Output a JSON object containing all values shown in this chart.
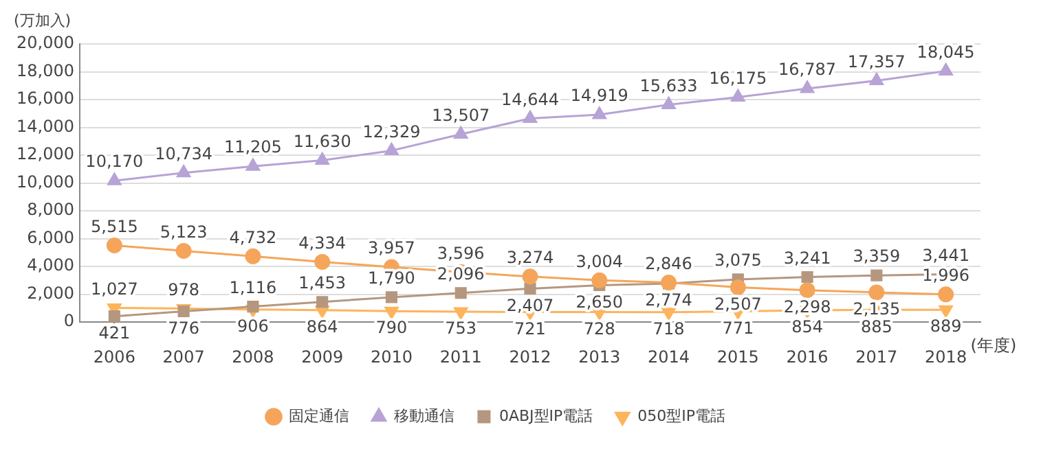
{
  "chart_data": {
    "type": "line",
    "ylabel": "(万加入)",
    "xlabel": "(年度)",
    "categories": [
      "2006",
      "2007",
      "2008",
      "2009",
      "2010",
      "2011",
      "2012",
      "2013",
      "2014",
      "2015",
      "2016",
      "2017",
      "2018"
    ],
    "series": [
      {
        "name": "固定通信",
        "color": "#f5a55a",
        "marker": "circle",
        "values": [
          5515,
          5123,
          4732,
          4334,
          3957,
          3596,
          3274,
          3004,
          2846,
          2507,
          2298,
          2135,
          1996
        ],
        "value_labels": [
          "5,515",
          "5,123",
          "4,732",
          "4,334",
          "3,957",
          "3,596",
          "3,274",
          "3,004",
          "2,846",
          "2,507",
          "2,298",
          "2,135",
          "1,996"
        ]
      },
      {
        "name": "移動通信",
        "color": "#b7a3d6",
        "marker": "triangle",
        "values": [
          10170,
          10734,
          11205,
          11630,
          12329,
          13507,
          14644,
          14919,
          15633,
          16175,
          16787,
          17357,
          18045
        ],
        "value_labels": [
          "10,170",
          "10,734",
          "11,205",
          "11,630",
          "12,329",
          "13,507",
          "14,644",
          "14,919",
          "15,633",
          "16,175",
          "16,787",
          "17,357",
          "18,045"
        ]
      },
      {
        "name": "0ABJ型IP電話",
        "color": "#b5977f",
        "marker": "square",
        "values": [
          421,
          776,
          1116,
          1453,
          1790,
          2096,
          2407,
          2650,
          2774,
          3075,
          3241,
          3359,
          3441
        ],
        "value_labels": [
          "421",
          "776",
          "1,116",
          "1,453",
          "1,790",
          "2,096",
          "2,407",
          "2,650",
          "2,774",
          "3,075",
          "3,241",
          "3,359",
          "3,441"
        ]
      },
      {
        "name": "050型IP電話",
        "color": "#fdb45c",
        "marker": "triangle-down",
        "values": [
          1027,
          978,
          906,
          864,
          790,
          753,
          721,
          728,
          718,
          771,
          854,
          885,
          889
        ],
        "value_labels": [
          "1,027",
          "978",
          "906",
          "864",
          "790",
          "753",
          "721",
          "728",
          "718",
          "771",
          "854",
          "885",
          "889"
        ]
      }
    ],
    "ylim": [
      0,
      20000
    ],
    "yticks": [
      0,
      {
        "value": 2000,
        "label": "2,000"
      },
      {
        "value": 4000,
        "label": "4,000"
      },
      {
        "value": 6000,
        "label": "6,000"
      },
      {
        "value": 8000,
        "label": "8,000"
      },
      {
        "value": 10000,
        "label": "10,000"
      },
      {
        "value": 12000,
        "label": "12,000"
      },
      {
        "value": 14000,
        "label": "14,000"
      },
      {
        "value": 16000,
        "label": "16,000"
      },
      {
        "value": 18000,
        "label": "18,000"
      },
      {
        "value": 20000,
        "label": "20,000"
      }
    ],
    "grid": "y",
    "legend": "bottom"
  }
}
